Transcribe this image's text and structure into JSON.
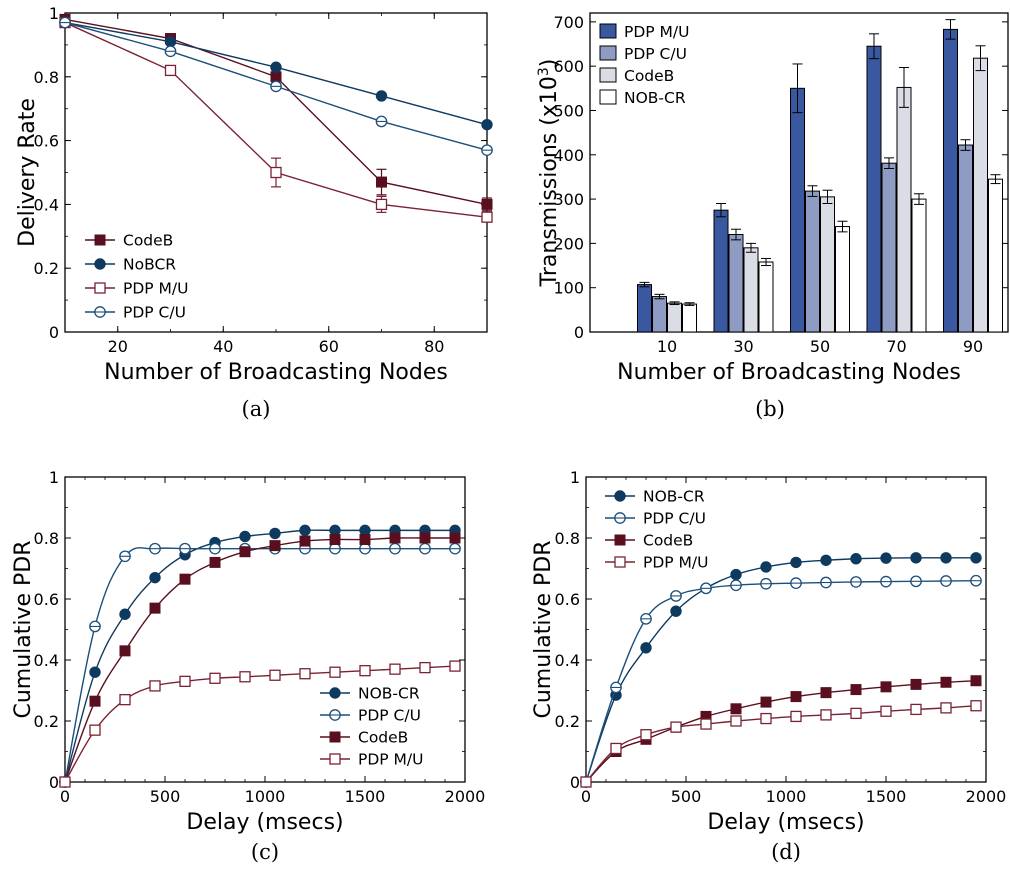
{
  "colors": {
    "codeb": "#5a0f1e",
    "nobcr": "#0f3a5f",
    "pdp_mu": "#7a2233",
    "pdp_cu": "#1c4f7a",
    "bar_pdp_mu": "#3a58a0",
    "bar_pdp_cu": "#8e9cc4",
    "bar_codeb": "#dadde6",
    "bar_nobcr": "#ffffff"
  },
  "chart_data": [
    {
      "type": "line",
      "caption": "(a)",
      "xlabel": "Number of Broadcasting Nodes",
      "ylabel": "Delivery Rate",
      "xlim": [
        10,
        90
      ],
      "ylim": [
        0,
        1
      ],
      "xticks": [
        20,
        40,
        60,
        80
      ],
      "yticks": [
        0,
        0.2,
        0.4,
        0.6,
        0.8,
        1
      ],
      "grid": false,
      "legend_position": "bottom-left",
      "series": [
        {
          "name": "CodeB",
          "marker": "filled-square",
          "color_key": "codeb",
          "x": [
            10,
            30,
            50,
            70,
            90
          ],
          "y": [
            0.98,
            0.92,
            0.8,
            0.47,
            0.4
          ],
          "err": [
            0,
            0,
            0,
            0.04,
            0.02
          ]
        },
        {
          "name": "NoBCR",
          "marker": "filled-circle",
          "color_key": "nobcr",
          "x": [
            10,
            30,
            50,
            70,
            90
          ],
          "y": [
            0.97,
            0.91,
            0.83,
            0.74,
            0.65
          ],
          "err": [
            0,
            0,
            0,
            0,
            0
          ]
        },
        {
          "name": "PDP M/U",
          "marker": "open-square",
          "color_key": "pdp_mu",
          "x": [
            10,
            30,
            50,
            70,
            90
          ],
          "y": [
            0.97,
            0.82,
            0.5,
            0.4,
            0.36
          ],
          "err": [
            0,
            0,
            0.045,
            0.025,
            0.015
          ]
        },
        {
          "name": "PDP C/U",
          "marker": "open-circle",
          "color_key": "pdp_cu",
          "x": [
            10,
            30,
            50,
            70,
            90
          ],
          "y": [
            0.97,
            0.88,
            0.77,
            0.66,
            0.57
          ],
          "err": [
            0,
            0,
            0,
            0,
            0
          ]
        }
      ]
    },
    {
      "type": "bar",
      "caption": "(b)",
      "xlabel": "Number of Broadcasting Nodes",
      "ylabel": "Transmissions (x10",
      "ylabel_sup": "3",
      "ylabel_end": ")",
      "categories": [
        "10",
        "30",
        "50",
        "70",
        "90"
      ],
      "ylim": [
        0,
        720
      ],
      "yticks": [
        0,
        100,
        200,
        300,
        400,
        500,
        600,
        700
      ],
      "grid": false,
      "legend_position": "top-left",
      "series": [
        {
          "name": "PDP M/U",
          "color_key": "bar_pdp_mu",
          "values": [
            107,
            275,
            550,
            645,
            683
          ],
          "err": [
            5,
            15,
            55,
            28,
            22
          ]
        },
        {
          "name": "PDP C/U",
          "color_key": "bar_pdp_cu",
          "values": [
            80,
            220,
            318,
            381,
            422
          ],
          "err": [
            5,
            12,
            12,
            12,
            12
          ]
        },
        {
          "name": "CodeB",
          "color_key": "bar_codeb",
          "values": [
            65,
            190,
            305,
            552,
            618
          ],
          "err": [
            3,
            10,
            15,
            45,
            28
          ]
        },
        {
          "name": "NOB-CR",
          "color_key": "bar_nobcr",
          "values": [
            63,
            158,
            238,
            300,
            345
          ],
          "err": [
            3,
            8,
            12,
            12,
            10
          ]
        }
      ]
    },
    {
      "type": "line",
      "caption": "(c)",
      "xlabel": "Delay (msecs)",
      "ylabel": "Cumulative PDR",
      "xlim": [
        0,
        2000
      ],
      "ylim": [
        0,
        1
      ],
      "xticks": [
        0,
        500,
        1000,
        1500,
        2000
      ],
      "yticks": [
        0,
        0.2,
        0.4,
        0.6,
        0.8,
        1
      ],
      "grid": false,
      "legend_position": "bottom-right",
      "series": [
        {
          "name": "NOB-CR",
          "marker": "filled-circle",
          "color_key": "nobcr",
          "x": [
            0,
            150,
            300,
            450,
            600,
            750,
            900,
            1050,
            1200,
            1350,
            1500,
            1650,
            1800,
            1950
          ],
          "y": [
            0,
            0.36,
            0.55,
            0.67,
            0.745,
            0.785,
            0.805,
            0.815,
            0.825,
            0.825,
            0.825,
            0.825,
            0.825,
            0.825
          ]
        },
        {
          "name": "PDP C/U",
          "marker": "open-circle",
          "color_key": "pdp_cu",
          "x": [
            0,
            150,
            300,
            450,
            600,
            750,
            900,
            1050,
            1200,
            1350,
            1500,
            1650,
            1800,
            1950
          ],
          "y": [
            0,
            0.51,
            0.74,
            0.765,
            0.765,
            0.765,
            0.765,
            0.765,
            0.765,
            0.765,
            0.765,
            0.765,
            0.765,
            0.765
          ]
        },
        {
          "name": "CodeB",
          "marker": "filled-square",
          "color_key": "codeb",
          "x": [
            0,
            150,
            300,
            450,
            600,
            750,
            900,
            1050,
            1200,
            1350,
            1500,
            1650,
            1800,
            1950
          ],
          "y": [
            0,
            0.265,
            0.43,
            0.57,
            0.665,
            0.72,
            0.755,
            0.775,
            0.79,
            0.795,
            0.795,
            0.8,
            0.8,
            0.8
          ]
        },
        {
          "name": "PDP M/U",
          "marker": "open-square",
          "color_key": "pdp_mu",
          "x": [
            0,
            150,
            300,
            450,
            600,
            750,
            900,
            1050,
            1200,
            1350,
            1500,
            1650,
            1800,
            1950
          ],
          "y": [
            0,
            0.17,
            0.27,
            0.315,
            0.33,
            0.34,
            0.345,
            0.35,
            0.355,
            0.36,
            0.365,
            0.37,
            0.375,
            0.38
          ]
        }
      ]
    },
    {
      "type": "line",
      "caption": "(d)",
      "xlabel": "Delay (msecs)",
      "ylabel": "Cumulative PDR",
      "xlim": [
        0,
        2000
      ],
      "ylim": [
        0,
        1
      ],
      "xticks": [
        0,
        500,
        1000,
        1500,
        2000
      ],
      "yticks": [
        0,
        0.2,
        0.4,
        0.6,
        0.8,
        1
      ],
      "grid": false,
      "legend_position": "top-left",
      "series": [
        {
          "name": "NOB-CR",
          "marker": "filled-circle",
          "color_key": "nobcr",
          "x": [
            0,
            150,
            300,
            450,
            600,
            750,
            900,
            1050,
            1200,
            1350,
            1500,
            1650,
            1800,
            1950
          ],
          "y": [
            0,
            0.285,
            0.44,
            0.56,
            0.635,
            0.68,
            0.705,
            0.72,
            0.727,
            0.732,
            0.734,
            0.735,
            0.735,
            0.735
          ]
        },
        {
          "name": "PDP C/U",
          "marker": "open-circle",
          "color_key": "pdp_cu",
          "x": [
            0,
            150,
            300,
            450,
            600,
            750,
            900,
            1050,
            1200,
            1350,
            1500,
            1650,
            1800,
            1950
          ],
          "y": [
            0,
            0.31,
            0.535,
            0.61,
            0.635,
            0.645,
            0.65,
            0.652,
            0.654,
            0.656,
            0.657,
            0.658,
            0.659,
            0.66
          ]
        },
        {
          "name": "CodeB",
          "marker": "filled-square",
          "color_key": "codeb",
          "x": [
            0,
            150,
            300,
            450,
            600,
            750,
            900,
            1050,
            1200,
            1350,
            1500,
            1650,
            1800,
            1950
          ],
          "y": [
            0,
            0.1,
            0.14,
            0.18,
            0.215,
            0.24,
            0.262,
            0.28,
            0.293,
            0.303,
            0.312,
            0.32,
            0.327,
            0.332
          ]
        },
        {
          "name": "PDP M/U",
          "marker": "open-square",
          "color_key": "pdp_mu",
          "x": [
            0,
            150,
            300,
            450,
            600,
            750,
            900,
            1050,
            1200,
            1350,
            1500,
            1650,
            1800,
            1950
          ],
          "y": [
            0,
            0.11,
            0.155,
            0.18,
            0.19,
            0.2,
            0.208,
            0.215,
            0.22,
            0.225,
            0.232,
            0.238,
            0.243,
            0.25
          ]
        }
      ]
    }
  ]
}
